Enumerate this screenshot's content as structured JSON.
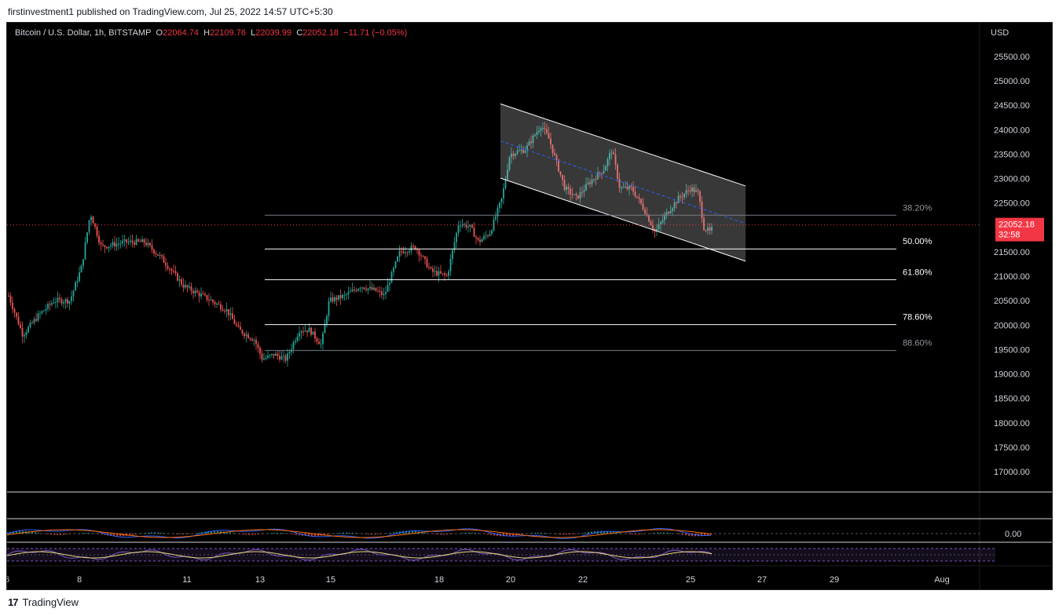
{
  "publisher_line": "firstinvestment1 published on TradingView.com, Jul 25, 2022 14:57 UTC+5:30",
  "symbol": {
    "name": "Bitcoin / U.S. Dollar, 1h, BITSTAMP",
    "o_label": "O",
    "o_value": "22064.74",
    "h_label": "H",
    "h_value": "22109.76",
    "l_label": "L",
    "l_value": "22039.99",
    "c_label": "C",
    "c_value": "22052.18",
    "change": "−11.71 (−0.05%)"
  },
  "currency": "USD",
  "price_axis": [
    "25500.00",
    "25000.00",
    "24500.00",
    "24000.00",
    "23500.00",
    "23000.00",
    "22500.00",
    "21500.00",
    "21000.00",
    "20500.00",
    "20000.00",
    "19500.00",
    "19000.00",
    "18500.00",
    "18000.00",
    "17500.00",
    "17000.00"
  ],
  "last_price": {
    "value": "22052.18",
    "countdown": "32:58"
  },
  "fib_levels": [
    {
      "label": "38.20%",
      "price": 22250
    },
    {
      "label": "50.00%",
      "price": 21560
    },
    {
      "label": "61.80%",
      "price": 20930
    },
    {
      "label": "78.60%",
      "price": 20010
    },
    {
      "label": "88.60%",
      "price": 19480
    }
  ],
  "indicator_value": "0.00",
  "time_axis": [
    "6",
    "8",
    "11",
    "13",
    "15",
    "18",
    "20",
    "22",
    "25",
    "27",
    "29",
    "Aug"
  ],
  "footer_brand": "TradingView",
  "colors": {
    "up": "#26a69a",
    "down": "#ef5350",
    "background": "#000000",
    "last_price": "#f23645"
  }
}
